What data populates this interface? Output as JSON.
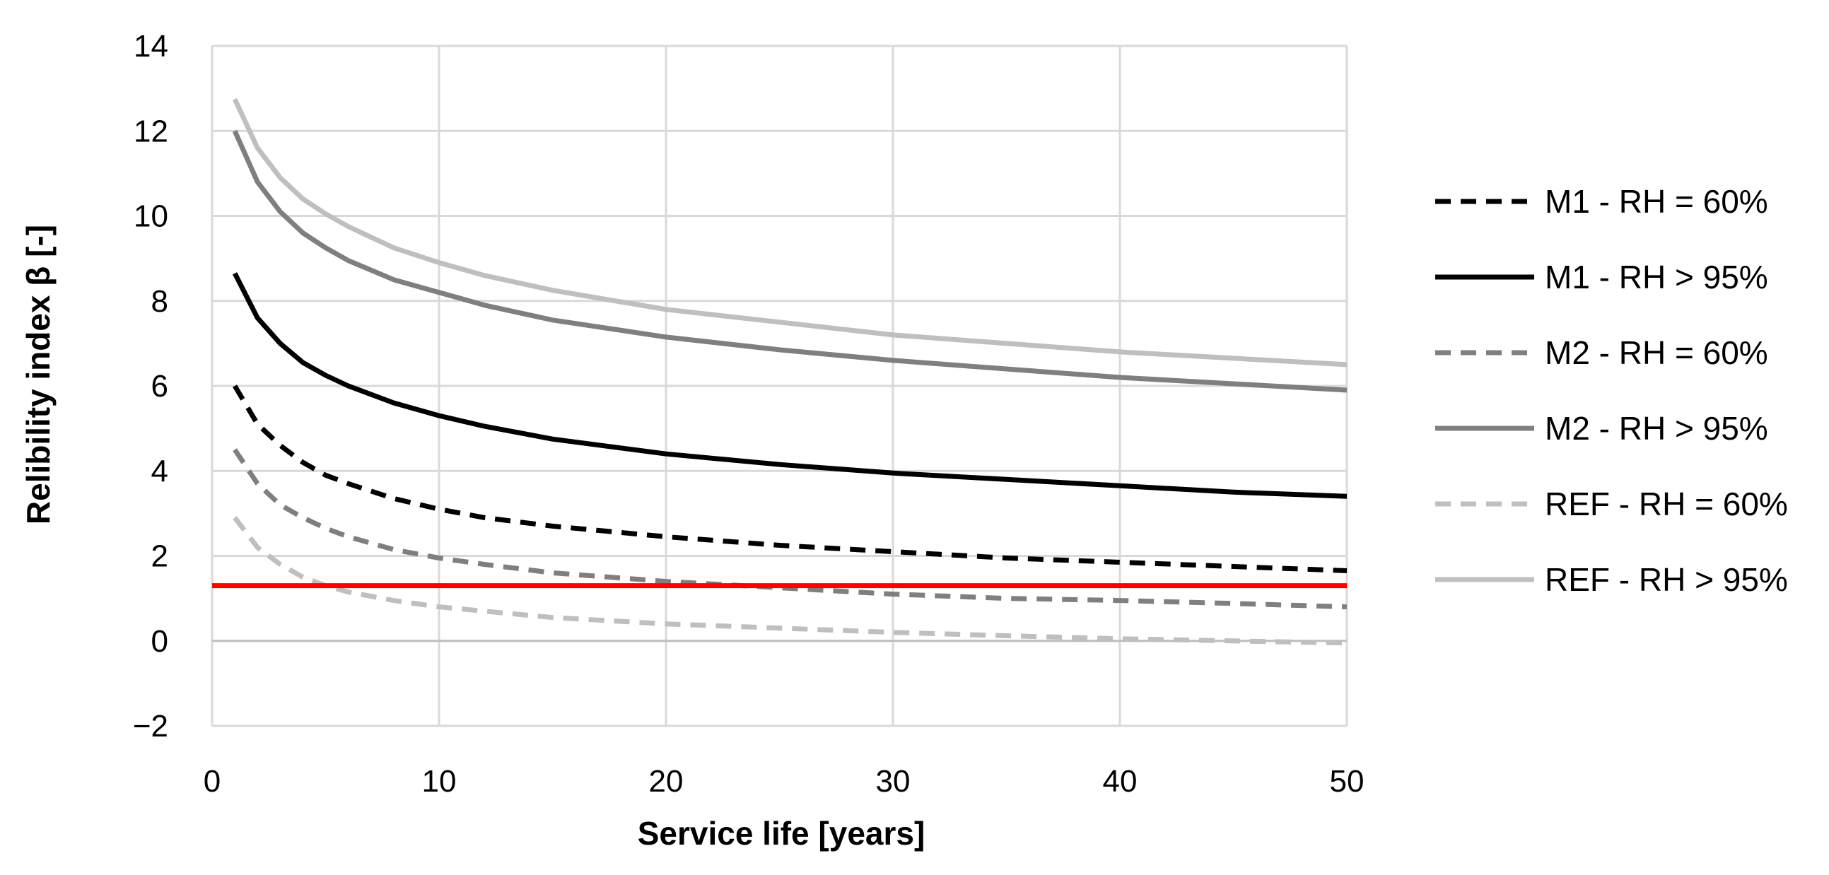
{
  "chart_data": {
    "type": "line",
    "title": "",
    "xlabel": "Service life [years]",
    "ylabel": "Relibility index β [-]",
    "xlim": [
      0,
      50
    ],
    "ylim": [
      -2,
      14
    ],
    "x_ticks": [
      0,
      10,
      20,
      30,
      40,
      50
    ],
    "y_ticks": [
      -2,
      0,
      2,
      4,
      6,
      8,
      10,
      12,
      14
    ],
    "x_tick_labels": [
      "0",
      "10",
      "20",
      "30",
      "40",
      "50"
    ],
    "y_tick_labels": [
      "−2",
      "0",
      "2",
      "4",
      "6",
      "8",
      "10",
      "12",
      "14"
    ],
    "grid": true,
    "legend_position": "right",
    "x": [
      1,
      2,
      3,
      4,
      5,
      6,
      8,
      10,
      12,
      15,
      20,
      25,
      30,
      35,
      40,
      45,
      50
    ],
    "series": [
      {
        "name": "M1 - RH = 60%",
        "color": "#000000",
        "dash": "dashed",
        "values": [
          6.0,
          5.1,
          4.6,
          4.2,
          3.9,
          3.7,
          3.35,
          3.1,
          2.9,
          2.7,
          2.45,
          2.25,
          2.1,
          1.95,
          1.85,
          1.75,
          1.65
        ]
      },
      {
        "name": "M1 - RH > 95%",
        "color": "#000000",
        "dash": "solid",
        "values": [
          8.65,
          7.6,
          7.0,
          6.55,
          6.25,
          6.0,
          5.6,
          5.3,
          5.05,
          4.75,
          4.4,
          4.15,
          3.95,
          3.8,
          3.65,
          3.5,
          3.4
        ]
      },
      {
        "name": "M2 - RH = 60%",
        "color": "#7f7f7f",
        "dash": "dashed",
        "values": [
          4.5,
          3.7,
          3.2,
          2.9,
          2.65,
          2.45,
          2.15,
          1.95,
          1.8,
          1.6,
          1.4,
          1.25,
          1.1,
          1.0,
          0.95,
          0.88,
          0.8
        ]
      },
      {
        "name": "M2 - RH > 95%",
        "color": "#7f7f7f",
        "dash": "solid",
        "values": [
          12.0,
          10.8,
          10.1,
          9.6,
          9.25,
          8.95,
          8.5,
          8.2,
          7.9,
          7.55,
          7.15,
          6.85,
          6.6,
          6.4,
          6.2,
          6.05,
          5.9
        ]
      },
      {
        "name": "REF - RH = 60%",
        "color": "#bfbfbf",
        "dash": "dashed",
        "values": [
          2.9,
          2.2,
          1.8,
          1.5,
          1.3,
          1.15,
          0.95,
          0.8,
          0.7,
          0.55,
          0.4,
          0.3,
          0.2,
          0.12,
          0.05,
          0.0,
          -0.05
        ]
      },
      {
        "name": "REF - RH > 95%",
        "color": "#bfbfbf",
        "dash": "solid",
        "values": [
          12.75,
          11.6,
          10.9,
          10.4,
          10.05,
          9.75,
          9.25,
          8.9,
          8.6,
          8.25,
          7.8,
          7.5,
          7.2,
          7.0,
          6.8,
          6.65,
          6.5
        ]
      }
    ],
    "reference_line": {
      "y": 1.3,
      "color": "#ff0000"
    }
  }
}
